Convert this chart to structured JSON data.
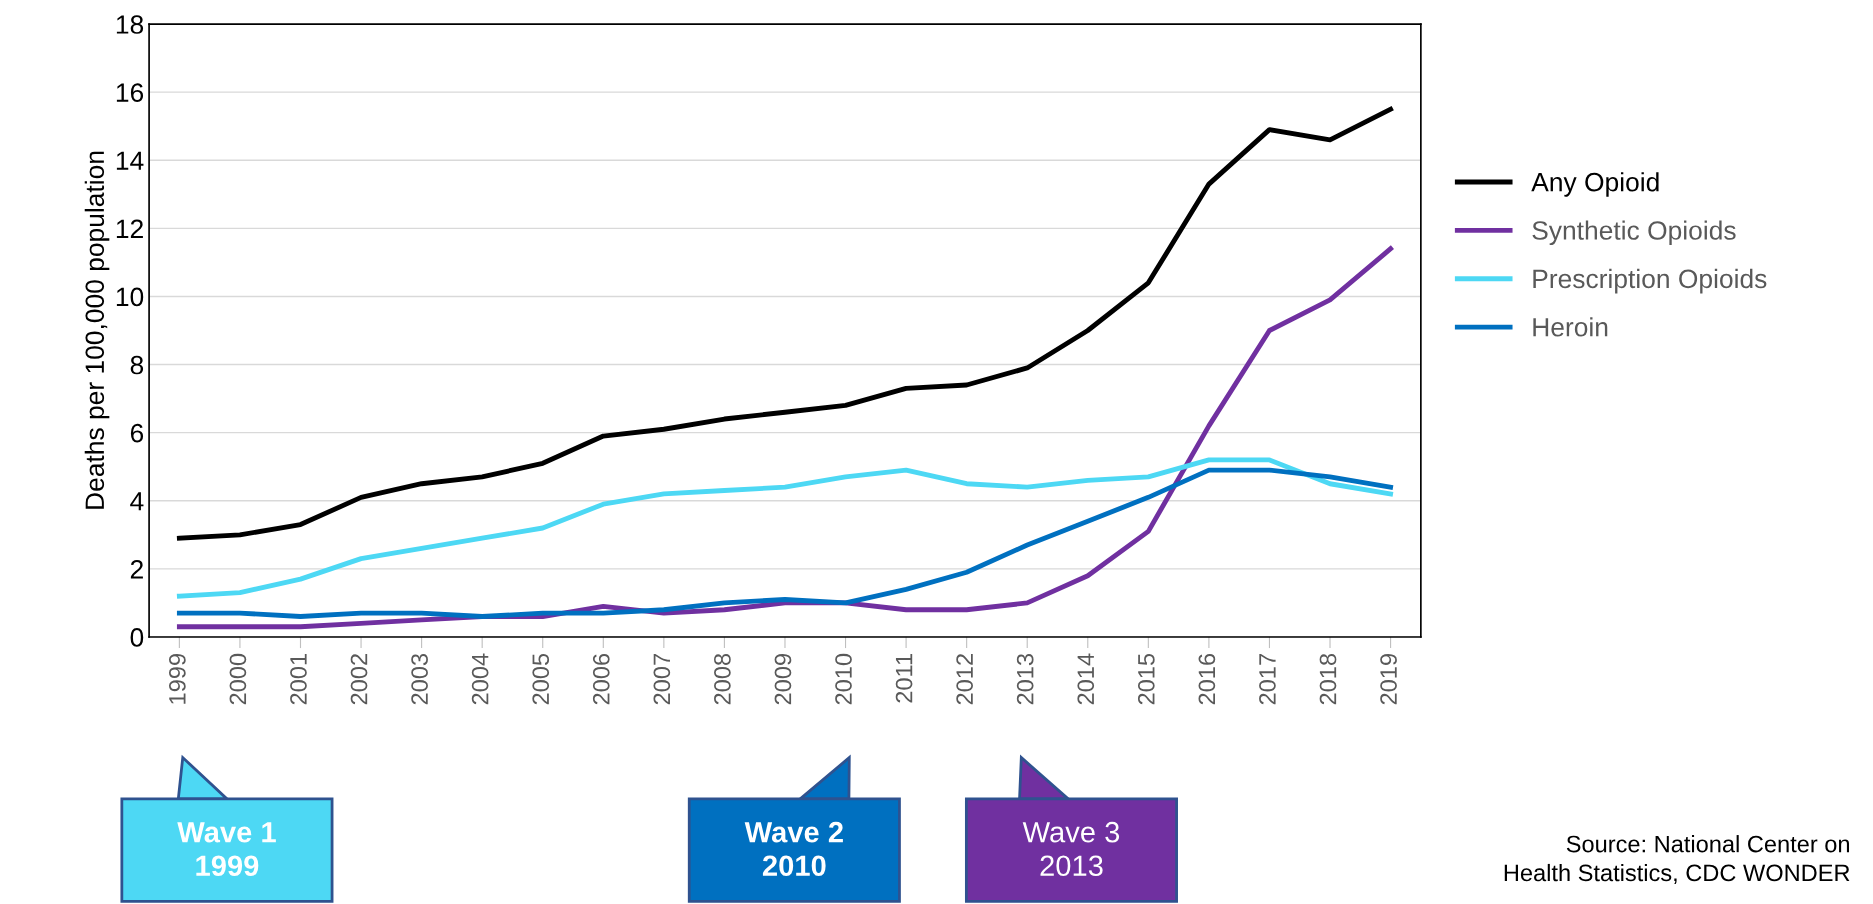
{
  "chart_data": {
    "type": "line",
    "ylabel": "Deaths per 100,000 population",
    "categories": [
      "1999",
      "2000",
      "2001",
      "2002",
      "2003",
      "2004",
      "2005",
      "2006",
      "2007",
      "2008",
      "2009",
      "2010",
      "2011",
      "2012",
      "2013",
      "2014",
      "2015",
      "2016",
      "2017",
      "2018",
      "2019"
    ],
    "series": [
      {
        "name": "Any Opioid",
        "color": "#000000",
        "values": [
          2.9,
          3.0,
          3.3,
          4.1,
          4.5,
          4.7,
          5.1,
          5.9,
          6.1,
          6.4,
          6.6,
          6.8,
          7.3,
          7.4,
          7.9,
          9.0,
          10.4,
          13.3,
          14.9,
          14.6,
          15.5
        ]
      },
      {
        "name": "Synthetic Opioids",
        "color": "#7030a0",
        "values": [
          0.3,
          0.3,
          0.3,
          0.4,
          0.5,
          0.6,
          0.6,
          0.9,
          0.7,
          0.8,
          1.0,
          1.0,
          0.8,
          0.8,
          1.0,
          1.8,
          3.1,
          6.2,
          9.0,
          9.9,
          11.4
        ]
      },
      {
        "name": "Prescription Opioids",
        "color": "#4dd8f4",
        "values": [
          1.2,
          1.3,
          1.7,
          2.3,
          2.6,
          2.9,
          3.2,
          3.9,
          4.2,
          4.3,
          4.4,
          4.7,
          4.9,
          4.5,
          4.4,
          4.6,
          4.7,
          5.2,
          5.2,
          4.5,
          4.2
        ]
      },
      {
        "name": "Heroin",
        "color": "#0070c0",
        "values": [
          0.7,
          0.7,
          0.6,
          0.7,
          0.7,
          0.6,
          0.7,
          0.7,
          0.8,
          1.0,
          1.1,
          1.0,
          1.4,
          1.9,
          2.7,
          3.4,
          4.1,
          4.9,
          4.9,
          4.7,
          4.4
        ]
      }
    ],
    "ylim": [
      0,
      18
    ],
    "yticks": [
      0,
      2,
      4,
      6,
      8,
      10,
      12,
      14,
      16,
      18
    ],
    "grid": "y",
    "legend": "right",
    "marker": "none",
    "line_style": "solid",
    "annotations": [
      "Wave 1\n1999",
      "Wave 2\n2010",
      "Wave 3\n2013",
      "Source: National Center on\nHealth Statistics, CDC WONDER"
    ]
  }
}
